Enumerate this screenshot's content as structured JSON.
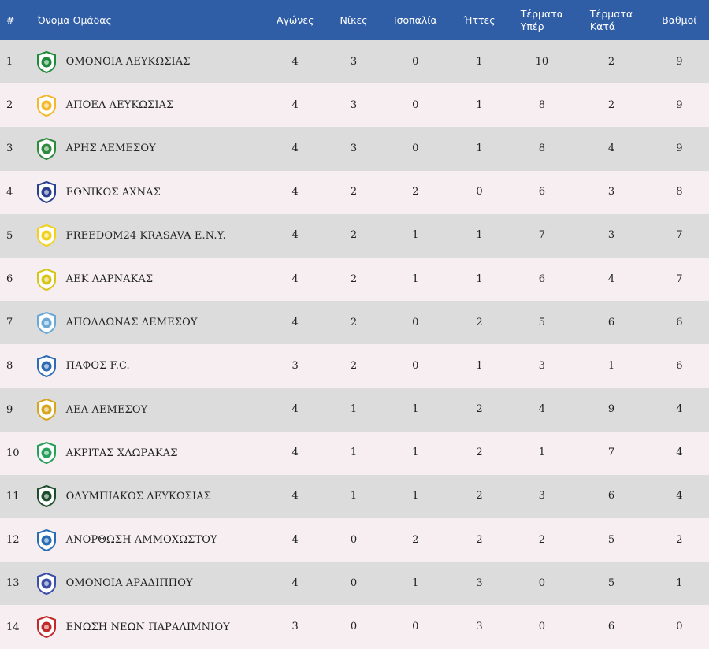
{
  "header": {
    "rank": "#",
    "team": "Όνομα Ομάδας",
    "games": "Αγώνες",
    "wins": "Νίκες",
    "draws": "Ισοπαλία",
    "losses": "Ήττες",
    "goals_for_line1": "Τέρματα",
    "goals_for_line2": "Υπέρ",
    "goals_against_line1": "Τέρματα",
    "goals_against_line2": "Κατά",
    "points": "Βαθμοί"
  },
  "rows": [
    {
      "rank": "1",
      "team": "ΟΜΟΝΟΙΑ ΛΕΥΚΩΣΙΑΣ",
      "games": "4",
      "wins": "3",
      "draws": "0",
      "losses": "1",
      "gf": "10",
      "ga": "2",
      "pts": "9",
      "logo_icon": "omonoia-crest-icon",
      "color": "#1f8a3a"
    },
    {
      "rank": "2",
      "team": "ΑΠΟΕΛ ΛΕΥΚΩΣΙΑΣ",
      "games": "4",
      "wins": "3",
      "draws": "0",
      "losses": "1",
      "gf": "8",
      "ga": "2",
      "pts": "9",
      "logo_icon": "apoel-crest-icon",
      "color": "#f3b82b"
    },
    {
      "rank": "3",
      "team": "ΑΡΗΣ ΛΕΜΕΣΟΥ",
      "games": "4",
      "wins": "3",
      "draws": "0",
      "losses": "1",
      "gf": "8",
      "ga": "4",
      "pts": "9",
      "logo_icon": "aris-crest-icon",
      "color": "#2e8b3d"
    },
    {
      "rank": "4",
      "team": "ΕΘΝΙΚΟΣ ΑΧΝΑΣ",
      "games": "4",
      "wins": "2",
      "draws": "2",
      "losses": "0",
      "gf": "6",
      "ga": "3",
      "pts": "8",
      "logo_icon": "ethnikos-crest-icon",
      "color": "#2a3f8f"
    },
    {
      "rank": "5",
      "team": "FREEDOM24 KRASAVA E.N.Y.",
      "games": "4",
      "wins": "2",
      "draws": "1",
      "losses": "1",
      "gf": "7",
      "ga": "3",
      "pts": "7",
      "logo_icon": "krasava-crest-icon",
      "color": "#f2d11c"
    },
    {
      "rank": "6",
      "team": "ΑΕΚ ΛΑΡΝΑΚΑΣ",
      "games": "4",
      "wins": "2",
      "draws": "1",
      "losses": "1",
      "gf": "6",
      "ga": "4",
      "pts": "7",
      "logo_icon": "aek-crest-icon",
      "color": "#d9c51a"
    },
    {
      "rank": "7",
      "team": "ΑΠΟΛΛΩΝΑΣ ΛΕΜΕΣΟΥ",
      "games": "4",
      "wins": "2",
      "draws": "0",
      "losses": "2",
      "gf": "5",
      "ga": "6",
      "pts": "6",
      "logo_icon": "apollon-crest-icon",
      "color": "#6aa8d8"
    },
    {
      "rank": "8",
      "team": "ΠΑΦΟΣ F.C.",
      "games": "3",
      "wins": "2",
      "draws": "0",
      "losses": "1",
      "gf": "3",
      "ga": "1",
      "pts": "6",
      "logo_icon": "pafos-crest-icon",
      "color": "#2f6bb5"
    },
    {
      "rank": "9",
      "team": "ΑΕΛ ΛΕΜΕΣΟΥ",
      "games": "4",
      "wins": "1",
      "draws": "1",
      "losses": "2",
      "gf": "4",
      "ga": "9",
      "pts": "4",
      "logo_icon": "ael-crest-icon",
      "color": "#d8a51e"
    },
    {
      "rank": "10",
      "team": "ΑΚΡΙΤΑΣ ΧΛΩΡΑΚΑΣ",
      "games": "4",
      "wins": "1",
      "draws": "1",
      "losses": "2",
      "gf": "1",
      "ga": "7",
      "pts": "4",
      "logo_icon": "akritas-crest-icon",
      "color": "#27a05a"
    },
    {
      "rank": "11",
      "team": "ΟΛΥΜΠΙΑΚΟΣ ΛΕΥΚΩΣΙΑΣ",
      "games": "4",
      "wins": "1",
      "draws": "1",
      "losses": "2",
      "gf": "3",
      "ga": "6",
      "pts": "4",
      "logo_icon": "olympiakos-crest-icon",
      "color": "#1d4d2d"
    },
    {
      "rank": "12",
      "team": "ΑΝΟΡΘΩΣΗ ΑΜΜΟΧΩΣΤΟΥ",
      "games": "4",
      "wins": "0",
      "draws": "2",
      "losses": "2",
      "gf": "2",
      "ga": "5",
      "pts": "2",
      "logo_icon": "anorthosis-crest-icon",
      "color": "#2a6db5"
    },
    {
      "rank": "13",
      "team": "ΟΜΟΝΟΙΑ ΑΡΑΔΙΠΠΟΥ",
      "games": "4",
      "wins": "0",
      "draws": "1",
      "losses": "3",
      "gf": "0",
      "ga": "5",
      "pts": "1",
      "logo_icon": "omonoia-aradippou-crest-icon",
      "color": "#3b4fa8"
    },
    {
      "rank": "14",
      "team": "ΕΝΩΣΗ ΝΕΩΝ ΠΑΡΑΛΙΜΝΙΟΥ",
      "games": "3",
      "wins": "0",
      "draws": "0",
      "losses": "3",
      "gf": "0",
      "ga": "6",
      "pts": "0",
      "logo_icon": "enp-crest-icon",
      "color": "#c22a2a"
    }
  ]
}
